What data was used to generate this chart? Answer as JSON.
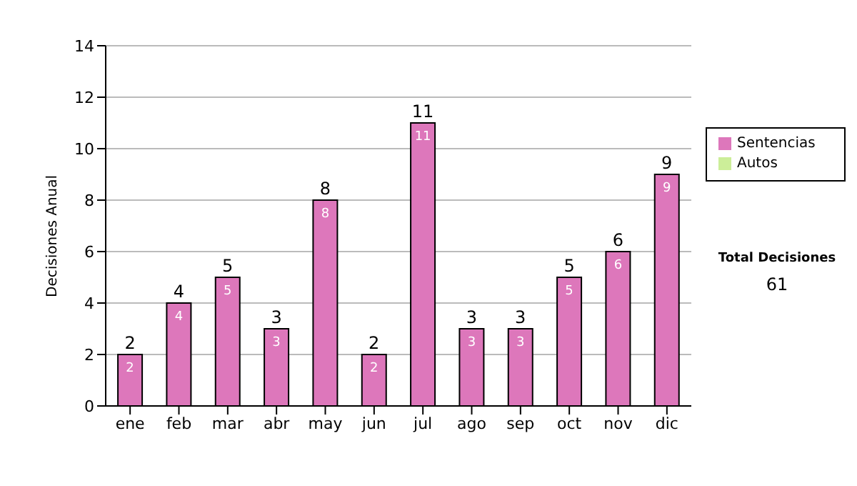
{
  "chart_data": {
    "type": "bar",
    "ylabel": "Decisiones Anual",
    "categories": [
      "ene",
      "feb",
      "mar",
      "abr",
      "may",
      "jun",
      "jul",
      "ago",
      "sep",
      "oct",
      "nov",
      "dic"
    ],
    "series": [
      {
        "name": "Sentencias",
        "color": "#dd77bb",
        "values": [
          2,
          4,
          5,
          3,
          8,
          2,
          11,
          3,
          3,
          5,
          6,
          9
        ],
        "value_labels": [
          "2",
          "4",
          "5",
          "3",
          "8",
          "2",
          "11",
          "3",
          "3",
          "5",
          "6",
          "9"
        ]
      },
      {
        "name": "Autos",
        "color": "#ccee99",
        "values": [
          0,
          0,
          0,
          0,
          0,
          0,
          0,
          0,
          0,
          0,
          0,
          0
        ]
      }
    ],
    "stacked": true,
    "totals": [
      "2",
      "4",
      "5",
      "3",
      "8",
      "2",
      "11",
      "3",
      "3",
      "5",
      "6",
      "9"
    ],
    "ylim": [
      0,
      14
    ],
    "yticks": [
      0,
      2,
      4,
      6,
      8,
      10,
      12,
      14
    ],
    "grid": "y",
    "legend": "right",
    "annotations": [
      "Total Decisiones",
      "61"
    ]
  }
}
